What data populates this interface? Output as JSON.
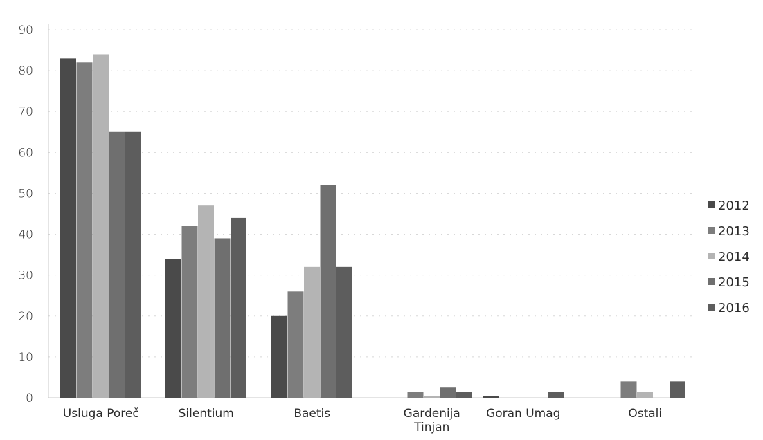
{
  "chart_data": {
    "type": "bar",
    "title": "",
    "xlabel": "",
    "ylabel": "",
    "ylim": [
      0,
      90
    ],
    "yticks": [
      0,
      10,
      20,
      30,
      40,
      50,
      60,
      70,
      80,
      90
    ],
    "grid": true,
    "legend_position": "right",
    "categories": [
      "Usluga Poreč",
      "Silentium",
      "Baetis",
      "Gardenija Tinjan",
      "Goran Umag",
      "Ostali"
    ],
    "series": [
      {
        "name": "2012",
        "color": "#4a4a4a",
        "values": [
          83,
          34,
          20,
          0,
          0.5,
          0
        ]
      },
      {
        "name": "2013",
        "color": "#7d7d7d",
        "values": [
          82,
          42,
          26,
          1.5,
          0,
          4
        ]
      },
      {
        "name": "2014",
        "color": "#b4b4b4",
        "values": [
          84,
          47,
          32,
          0.5,
          0,
          1.5
        ]
      },
      {
        "name": "2015",
        "color": "#6f6f6f",
        "values": [
          65,
          39,
          52,
          2.5,
          0,
          0
        ]
      },
      {
        "name": "2016",
        "color": "#5d5d5d",
        "values": [
          65,
          44,
          32,
          1.5,
          1.5,
          4
        ]
      }
    ]
  }
}
